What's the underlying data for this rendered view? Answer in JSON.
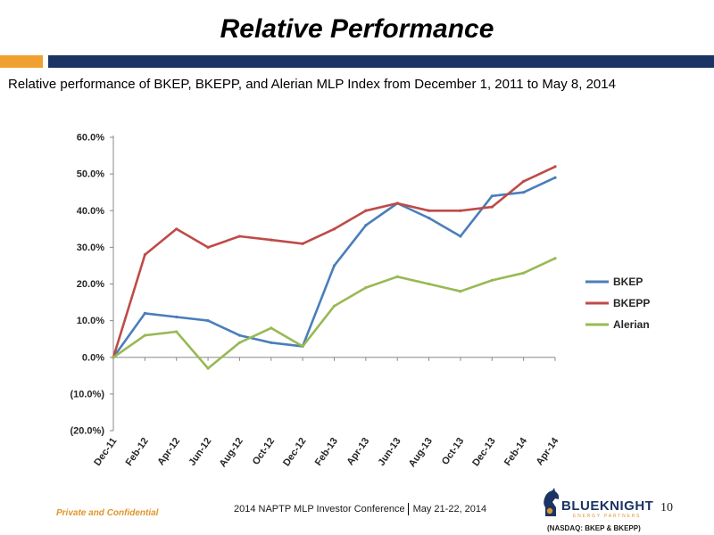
{
  "slide": {
    "title": "Relative Performance",
    "subtitle": "Relative performance of BKEP, BKEPP, and Alerian MLP Index from December 1, 2011 to May 8, 2014",
    "footer_left": "Private and Confidential",
    "footer_center_event": "2014 NAPTP MLP Investor Conference",
    "footer_center_date": "May 21-22, 2014",
    "page_number": "10",
    "logo_name": "BLUEKNIGHT",
    "logo_tagline": "ENERGY PARTNERS",
    "ticker_note": "(NASDAQ: BKEP & BKEPP)"
  },
  "colors": {
    "accent_orange": "#f0a030",
    "header_navy": "#1c3463",
    "bkep": "#4a7ebb",
    "bkepp": "#be4b48",
    "alerian": "#98b954"
  },
  "chart_data": {
    "type": "line",
    "x": [
      "Dec-11",
      "Feb-12",
      "Apr-12",
      "Jun-12",
      "Aug-12",
      "Oct-12",
      "Dec-12",
      "Feb-13",
      "Apr-13",
      "Jun-13",
      "Aug-13",
      "Oct-13",
      "Dec-13",
      "Feb-14",
      "Apr-14"
    ],
    "x_tick_labels": [
      "Dec-11",
      "Feb-12",
      "Apr-12",
      "Jun-12",
      "Aug-12",
      "Oct-12",
      "Dec-12",
      "Feb-13",
      "Apr-13",
      "Jun-13",
      "Aug-13",
      "Oct-13",
      "Dec-13",
      "Feb-14",
      "Apr-14"
    ],
    "y_tick_labels": [
      "60.0%",
      "50.0%",
      "40.0%",
      "30.0%",
      "20.0%",
      "10.0%",
      "0.0%",
      "(10.0%)",
      "(20.0%)"
    ],
    "ylim": [
      -20,
      60
    ],
    "y_unit": "%",
    "legend_position": "right",
    "grid": false,
    "series": [
      {
        "name": "BKEP",
        "color": "#4a7ebb",
        "values": [
          0,
          12,
          11,
          10,
          6,
          4,
          3,
          25,
          36,
          42,
          38,
          33,
          44,
          45,
          49
        ]
      },
      {
        "name": "BKEPP",
        "color": "#be4b48",
        "values": [
          0,
          28,
          35,
          30,
          33,
          32,
          31,
          35,
          40,
          42,
          40,
          40,
          41,
          48,
          52
        ]
      },
      {
        "name": "Alerian",
        "color": "#98b954",
        "values": [
          0,
          6,
          7,
          -3,
          4,
          8,
          3,
          14,
          19,
          22,
          20,
          18,
          21,
          23,
          27
        ]
      }
    ]
  }
}
